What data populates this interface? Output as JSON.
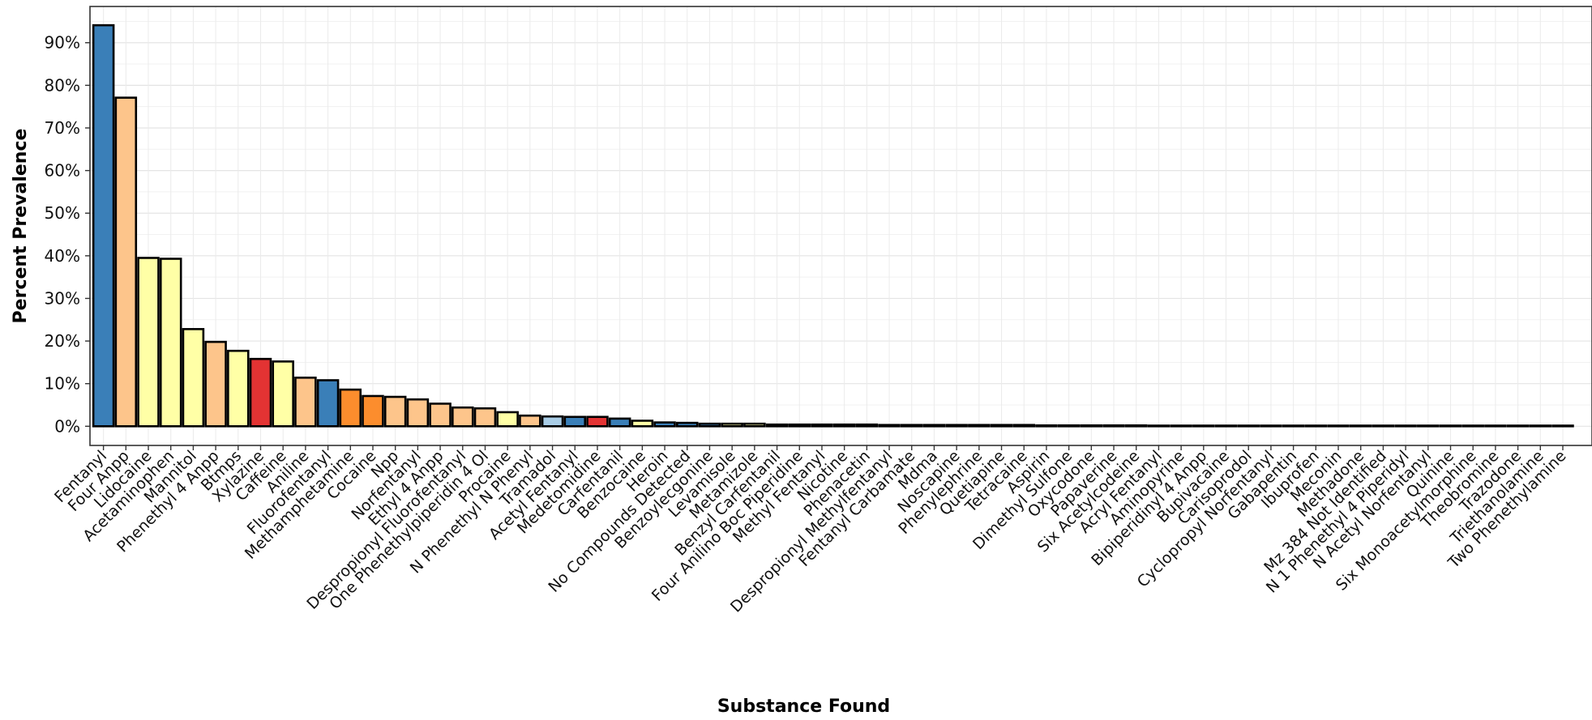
{
  "chart_data": {
    "type": "bar",
    "title": "",
    "xlabel": "Substance Found",
    "ylabel": "Percent Prevalence",
    "ylim": [
      -0.045,
      0.985
    ],
    "y_ticks": [
      0,
      0.1,
      0.2,
      0.3,
      0.4,
      0.5,
      0.6,
      0.7,
      0.8,
      0.9
    ],
    "y_tick_labels": [
      "0%",
      "10%",
      "20%",
      "30%",
      "40%",
      "50%",
      "60%",
      "70%",
      "80%",
      "90%"
    ],
    "grid": true,
    "legend": "none",
    "categories": [
      "Fentanyl",
      "Four Anpp",
      "Lidocaine",
      "Acetaminophen",
      "Mannitol",
      "Phenethyl 4 Anpp",
      "Btmps",
      "Xylazine",
      "Caffeine",
      "Aniline",
      "Fluorofentanyl",
      "Methamphetamine",
      "Cocaine",
      "Npp",
      "Norfentanyl",
      "Ethyl 4 Anpp",
      "Despropionyl Fluorofentanyl",
      "One Phenethylpiperidin 4 Ol",
      "Procaine",
      "N Phenethyl N Phenyl",
      "Tramadol",
      "Acetyl Fentanyl",
      "Medetomidine",
      "Carfentanil",
      "Benzocaine",
      "Heroin",
      "No Compounds Detected",
      "Benzoylecgonine",
      "Levamisole",
      "Metamizole",
      "Benzyl Carfentanil",
      "Four Anilino Boc Piperidine",
      "Methyl Fentanyl",
      "Nicotine",
      "Phenacetin",
      "Despropionyl Methylfentanyl",
      "Fentanyl Carbamate",
      "Mdma",
      "Noscapine",
      "Phenylephrine",
      "Quetiapine",
      "Tetracaine",
      "Aspirin",
      "Dimethyl Sulfone",
      "Oxycodone",
      "Papaverine",
      "Six Acetylcodeine",
      "Acryl Fentanyl",
      "Aminopyrine",
      "Bipiperidinyl 4 Anpp",
      "Bupivacaine",
      "Carisoprodol",
      "Cyclopropyl Norfentanyl",
      "Gabapentin",
      "Ibuprofen",
      "Meconin",
      "Methadone",
      "Mz 384 Not Identified",
      "N 1 Phenethyl 4 Piperidyl",
      "N Acetyl Norfentanyl",
      "Quinine",
      "Six Monoacetylmorphine",
      "Theobromine",
      "Trazodone",
      "Triethanolamine",
      "Two Phenethylamine"
    ],
    "values": [
      0.941,
      0.771,
      0.395,
      0.393,
      0.228,
      0.198,
      0.177,
      0.158,
      0.152,
      0.114,
      0.108,
      0.086,
      0.071,
      0.069,
      0.063,
      0.053,
      0.044,
      0.042,
      0.033,
      0.025,
      0.023,
      0.022,
      0.022,
      0.018,
      0.013,
      0.009,
      0.008,
      0.006,
      0.006,
      0.006,
      0.004,
      0.004,
      0.004,
      0.004,
      0.004,
      0.003,
      0.003,
      0.003,
      0.003,
      0.003,
      0.003,
      0.003,
      0.002,
      0.002,
      0.002,
      0.002,
      0.002,
      0.001,
      0.001,
      0.001,
      0.001,
      0.001,
      0.001,
      0.001,
      0.001,
      0.001,
      0.001,
      0.001,
      0.001,
      0.001,
      0.001,
      0.001,
      0.001,
      0.001,
      0.001,
      0.001
    ],
    "colors": [
      "#3a7fb8",
      "#fdc58b",
      "#ffffa6",
      "#ffffa6",
      "#ffffa6",
      "#fdc58b",
      "#ffffa6",
      "#e33333",
      "#ffffa6",
      "#fdc58b",
      "#3a7fb8",
      "#fc8d2d",
      "#fc8d2d",
      "#fdc58b",
      "#fdc58b",
      "#fdc58b",
      "#fdc58b",
      "#fdc58b",
      "#ffffa6",
      "#fdc58b",
      "#a9cde6",
      "#3a7fb8",
      "#e33333",
      "#3a7fb8",
      "#ffffa6",
      "#3a7fb8",
      "#3a7fb8",
      "#3a7fb8",
      "#ffffa6",
      "#ffffa6",
      "#3a7fb8",
      "#fdc58b",
      "#3a7fb8",
      "#ffffa6",
      "#ffffa6",
      "#fdc58b",
      "#fdc58b",
      "#fc8d2d",
      "#ffffa6",
      "#ffffa6",
      "#ffffa6",
      "#ffffa6",
      "#ffffa6",
      "#ffffa6",
      "#3a7fb8",
      "#ffffa6",
      "#3a7fb8",
      "#3a7fb8",
      "#ffffa6",
      "#fdc58b",
      "#ffffa6",
      "#ffffa6",
      "#fdc58b",
      "#ffffa6",
      "#ffffa6",
      "#ffffa6",
      "#3a7fb8",
      "#ffffa6",
      "#fdc58b",
      "#fdc58b",
      "#ffffa6",
      "#3a7fb8",
      "#ffffa6",
      "#ffffa6",
      "#ffffa6",
      "#ffffa6"
    ]
  }
}
